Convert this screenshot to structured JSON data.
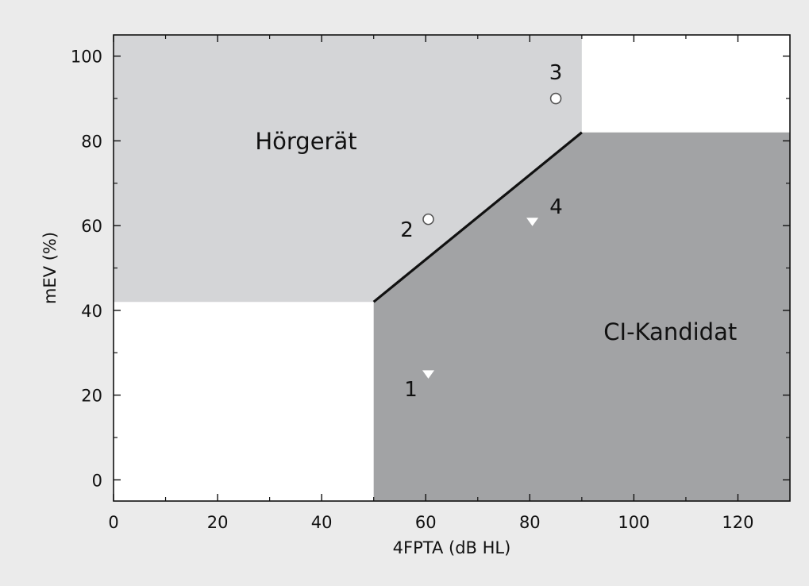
{
  "chart_data": {
    "type": "scatter",
    "xlabel": "4FPTA (dB HL)",
    "ylabel": "mEV (%)",
    "xlim": [
      0,
      130
    ],
    "ylim": [
      -5,
      105
    ],
    "x_ticks": [
      0,
      20,
      40,
      60,
      80,
      100,
      120
    ],
    "y_ticks": [
      0,
      20,
      40,
      60,
      80,
      100
    ],
    "x_minor_step": 10,
    "y_minor_step": 10,
    "grid": false,
    "background_colors": {
      "page": "#ebebeb",
      "plot_default": "#ffffff",
      "hearing_aid_region": "#d4d5d7",
      "ci_region": "#a2a3a5",
      "boundary_line": "#111111"
    },
    "regions": [
      {
        "name": "Hörgerät",
        "label": "Hörgerät",
        "label_anchor": [
          37,
          78
        ],
        "polygon": [
          [
            0,
            105
          ],
          [
            90,
            105
          ],
          [
            90,
            82
          ],
          [
            50,
            42
          ],
          [
            0,
            42
          ]
        ]
      },
      {
        "name": "CI-Kandidat",
        "label": "CI-Kandidat",
        "label_anchor": [
          107,
          33
        ],
        "polygon": [
          [
            50,
            -5
          ],
          [
            50,
            42
          ],
          [
            90,
            82
          ],
          [
            130,
            82
          ],
          [
            130,
            -5
          ]
        ]
      }
    ],
    "boundary": [
      [
        50,
        42
      ],
      [
        90,
        82
      ]
    ],
    "points": [
      {
        "label": "1",
        "x": 60.5,
        "y": 25,
        "marker": "triangle-down",
        "color": "#ffffff"
      },
      {
        "label": "2",
        "x": 60.5,
        "y": 61.5,
        "marker": "circle",
        "color": "#ffffff"
      },
      {
        "label": "3",
        "x": 85,
        "y": 90,
        "marker": "circle",
        "color": "#ffffff"
      },
      {
        "label": "4",
        "x": 80.5,
        "y": 61,
        "marker": "triangle-down",
        "color": "#ffffff"
      }
    ]
  }
}
